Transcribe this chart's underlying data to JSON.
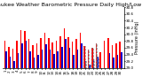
{
  "title": "Milwaukee Weather Barometric Pressure Daily High/Low",
  "ylabel": "Pressure (inHg)",
  "ylim": [
    29.0,
    30.8
  ],
  "yticks": [
    29.0,
    29.2,
    29.4,
    29.6,
    29.8,
    30.0,
    30.2,
    30.4,
    30.6,
    30.8
  ],
  "bar_width": 0.35,
  "high_color": "#ff0000",
  "low_color": "#0000cc",
  "background_color": "#ffffff",
  "days": [
    "1",
    "2",
    "3",
    "4",
    "5",
    "6",
    "7",
    "8",
    "9",
    "10",
    "11",
    "12",
    "13",
    "14",
    "15",
    "16",
    "17",
    "18",
    "19",
    "20",
    "21",
    "22",
    "23",
    "24",
    "25",
    "26",
    "27",
    "28",
    "29",
    "30"
  ],
  "highs": [
    29.82,
    29.62,
    29.58,
    29.8,
    30.12,
    30.1,
    29.85,
    29.68,
    29.72,
    29.9,
    30.05,
    29.88,
    29.75,
    29.8,
    29.95,
    30.18,
    29.92,
    29.78,
    29.85,
    30.05,
    29.65,
    29.55,
    29.6,
    29.72,
    29.48,
    29.8,
    29.9,
    29.68,
    29.72,
    29.78
  ],
  "lows": [
    29.5,
    29.35,
    29.2,
    29.45,
    29.72,
    29.8,
    29.5,
    29.3,
    29.4,
    29.55,
    29.7,
    29.55,
    29.42,
    29.5,
    29.62,
    29.85,
    29.6,
    29.4,
    29.55,
    29.72,
    29.2,
    29.1,
    29.25,
    29.35,
    28.85,
    28.9,
    29.45,
    29.3,
    29.4,
    29.48
  ],
  "dashed_days": [
    21,
    22,
    23,
    24
  ],
  "title_fontsize": 4.5,
  "tick_fontsize": 3.0,
  "ylabel_fontsize": 3.5
}
